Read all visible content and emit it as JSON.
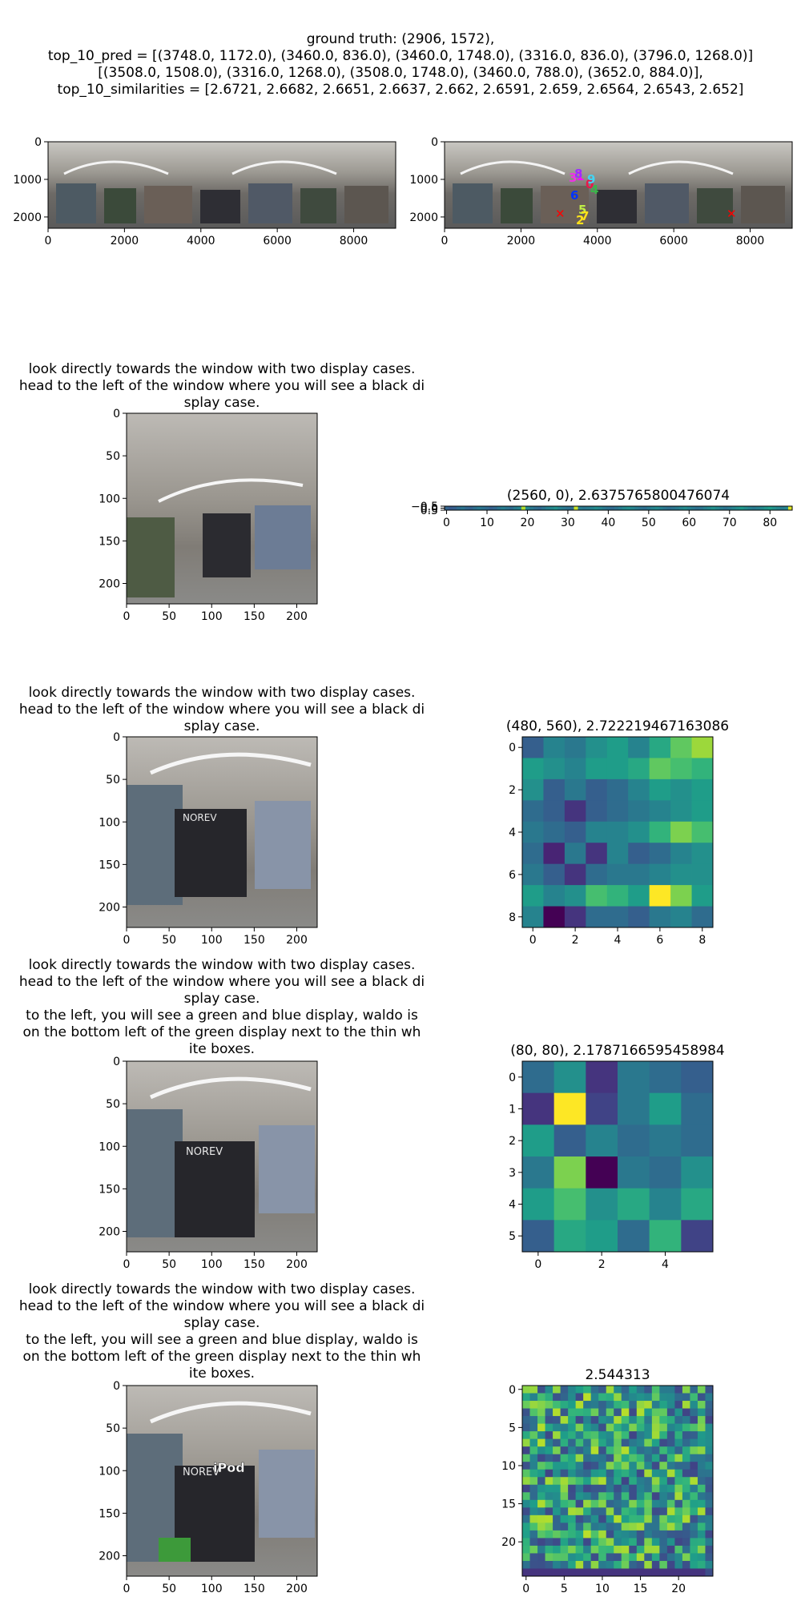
{
  "header": {
    "lines": [
      "ground truth: (2906, 1572),",
      "top_10_pred = [(3748.0, 1172.0), (3460.0, 836.0), (3460.0, 1748.0), (3316.0, 836.0), (3796.0, 1268.0)]",
      "[(3508.0, 1508.0), (3316.0, 1268.0), (3508.0, 1748.0), (3460.0, 788.0), (3652.0, 884.0)],",
      "top_10_similarities = [2.6721, 2.6682, 2.6651, 2.6637, 2.662, 2.6591, 2.659, 2.6564, 2.6543, 2.652]"
    ]
  },
  "panorama": {
    "x_ticks": [
      "0",
      "2000",
      "4000",
      "6000",
      "8000"
    ],
    "y_ticks": [
      "0",
      "1000",
      "2000"
    ],
    "pred_markers": [
      "0",
      "1",
      "2",
      "3",
      "4",
      "5",
      "6",
      "7",
      "8",
      "9"
    ]
  },
  "captions": {
    "c1": [
      "look directly towards the window with two display cases.",
      "head to the left of the window where you will see a black di",
      "splay case."
    ],
    "c2": [
      "look directly towards the window with two display cases.",
      "head to the left of the window where you will see a black di",
      "splay case."
    ],
    "c3": [
      "look directly towards the window with two display cases.",
      "head to the left of the window where you will see a black di",
      "splay case.",
      "to the left, you will see a green and blue display, waldo is",
      " on the bottom left of the green display next to the thin wh",
      "ite boxes."
    ],
    "c4": [
      "look directly towards the window with two display cases.",
      "head to the left of the window where you will see a black di",
      "splay case.",
      "to the left, you will see a green and blue display, waldo is",
      " on the bottom left of the green display next to the thin wh",
      "ite boxes."
    ]
  },
  "crop_ticks": [
    "0",
    "50",
    "100",
    "150",
    "200"
  ],
  "store_signs": [
    "NOREV",
    "NOREV",
    "NOREV",
    "iPod"
  ],
  "chart_data": [
    {
      "type": "heatmap",
      "title": "(2560, 0), 2.6375765800476074",
      "x_ticks": [
        "0",
        "10",
        "20",
        "30",
        "40",
        "50",
        "60",
        "70",
        "80"
      ],
      "y_ticks": [
        "−0.5",
        "0.0",
        "0.5"
      ],
      "rows": 1,
      "cols": 86,
      "values": [
        [
          0.32,
          0.28,
          0.3,
          0.35,
          0.38,
          0.33,
          0.31,
          0.36,
          0.4,
          0.37,
          0.34,
          0.3,
          0.33,
          0.39,
          0.42,
          0.38,
          0.35,
          0.41,
          0.45,
          0.88,
          0.47,
          0.4,
          0.36,
          0.33,
          0.38,
          0.43,
          0.46,
          0.5,
          0.44,
          0.4,
          0.37,
          0.35,
          0.92,
          0.42,
          0.39,
          0.41,
          0.44,
          0.48,
          0.45,
          0.4,
          0.37,
          0.34,
          0.38,
          0.42,
          0.46,
          0.49,
          0.45,
          0.41,
          0.38,
          0.36,
          0.4,
          0.44,
          0.47,
          0.43,
          0.39,
          0.36,
          0.38,
          0.41,
          0.45,
          0.48,
          0.44,
          0.4,
          0.37,
          0.39,
          0.43,
          0.47,
          0.5,
          0.46,
          0.42,
          0.38,
          0.41,
          0.45,
          0.49,
          0.53,
          0.48,
          0.44,
          0.4,
          0.43,
          0.47,
          0.51,
          0.55,
          0.5,
          0.46,
          0.42,
          0.45,
          0.95
        ]
      ]
    },
    {
      "type": "heatmap",
      "title": "(480, 560), 2.722219467163086",
      "x_ticks": [
        "0",
        "2",
        "4",
        "6",
        "8"
      ],
      "y_ticks": [
        "0",
        "2",
        "4",
        "6",
        "8"
      ],
      "rows": 9,
      "cols": 9,
      "values": [
        [
          0.3,
          0.45,
          0.4,
          0.5,
          0.55,
          0.45,
          0.6,
          0.75,
          0.85
        ],
        [
          0.55,
          0.5,
          0.45,
          0.55,
          0.55,
          0.6,
          0.75,
          0.7,
          0.65
        ],
        [
          0.5,
          0.3,
          0.4,
          0.3,
          0.35,
          0.45,
          0.55,
          0.5,
          0.55
        ],
        [
          0.35,
          0.3,
          0.15,
          0.3,
          0.35,
          0.4,
          0.45,
          0.5,
          0.55
        ],
        [
          0.4,
          0.35,
          0.3,
          0.45,
          0.45,
          0.5,
          0.65,
          0.8,
          0.7
        ],
        [
          0.35,
          0.1,
          0.4,
          0.15,
          0.45,
          0.3,
          0.35,
          0.45,
          0.5
        ],
        [
          0.4,
          0.3,
          0.15,
          0.35,
          0.4,
          0.4,
          0.45,
          0.5,
          0.5
        ],
        [
          0.55,
          0.45,
          0.5,
          0.7,
          0.65,
          0.55,
          1.0,
          0.8,
          0.55
        ],
        [
          0.45,
          0.0,
          0.15,
          0.35,
          0.35,
          0.3,
          0.4,
          0.45,
          0.35
        ]
      ]
    },
    {
      "type": "heatmap",
      "title": "(80, 80), 2.1787166595458984",
      "x_ticks": [
        "0",
        "2",
        "4"
      ],
      "y_ticks": [
        "0",
        "1",
        "2",
        "3",
        "4",
        "5"
      ],
      "rows": 6,
      "cols": 6,
      "values": [
        [
          0.35,
          0.5,
          0.15,
          0.4,
          0.35,
          0.3
        ],
        [
          0.15,
          1.0,
          0.2,
          0.4,
          0.55,
          0.35
        ],
        [
          0.55,
          0.3,
          0.45,
          0.35,
          0.4,
          0.35
        ],
        [
          0.4,
          0.8,
          0.0,
          0.4,
          0.35,
          0.5
        ],
        [
          0.55,
          0.7,
          0.5,
          0.6,
          0.45,
          0.6
        ],
        [
          0.3,
          0.6,
          0.55,
          0.35,
          0.65,
          0.2
        ]
      ]
    },
    {
      "type": "heatmap",
      "title": "2.544313",
      "x_ticks": [
        "0",
        "5",
        "10",
        "15",
        "20"
      ],
      "y_ticks": [
        "0",
        "5",
        "10",
        "15",
        "20"
      ],
      "rows": 25,
      "cols": 25
    }
  ]
}
